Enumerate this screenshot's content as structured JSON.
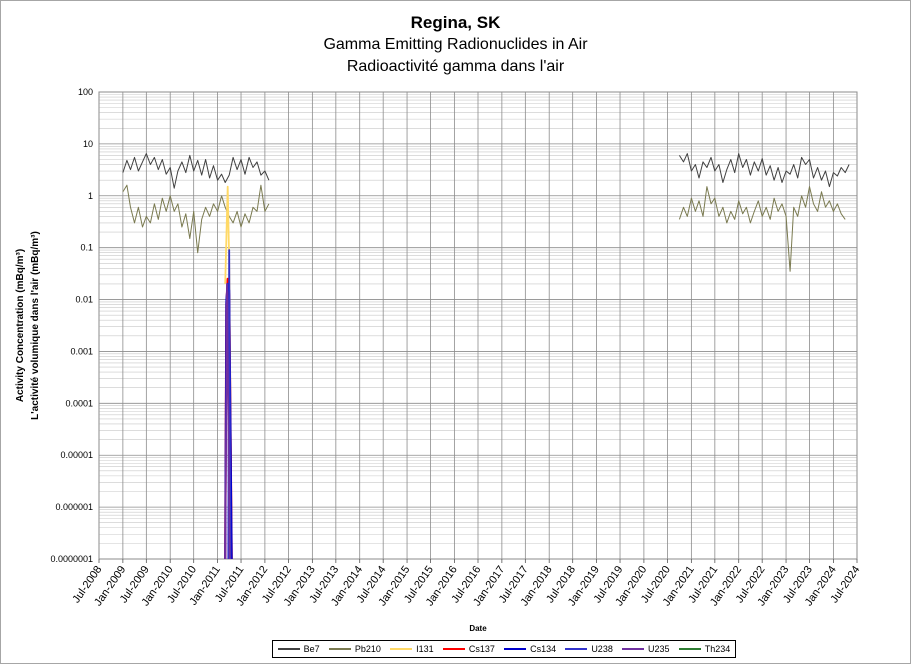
{
  "chart_data": {
    "type": "line",
    "title": "Regina, SK",
    "subtitle": "Gamma Emitting Radionuclides in Air",
    "subtitle_fr": "Radioactivité gamma dans l'air",
    "xlabel": "Date",
    "ylabel": "Activity Concentration  (mBq/m³)",
    "ylabel_fr": "L'activité volumique dans l'air (mBq/m³)",
    "y_scale": "log",
    "ylim": [
      1e-07,
      100
    ],
    "y_ticks": [
      "100",
      "10",
      "1",
      "0.1",
      "0.01",
      "0.001",
      "0.0001",
      "0.00001",
      "0.000001",
      "0.0000001"
    ],
    "xlim": [
      "2008-07-01",
      "2024-07-01"
    ],
    "x_ticks": [
      "Jul-2008",
      "Jan-2009",
      "Jul-2009",
      "Jan-2010",
      "Jul-2010",
      "Jan-2011",
      "Jul-2011",
      "Jan-2012",
      "Jul-2012",
      "Jan-2013",
      "Jul-2013",
      "Jan-2014",
      "Jul-2014",
      "Jan-2015",
      "Jul-2015",
      "Jan-2016",
      "Jul-2016",
      "Jan-2017",
      "Jul-2017",
      "Jan-2018",
      "Jul-2018",
      "Jan-2019",
      "Jul-2019",
      "Jan-2020",
      "Jul-2020",
      "Jan-2021",
      "Jul-2021",
      "Jan-2022",
      "Jul-2022",
      "Jan-2023",
      "Jul-2023",
      "Jan-2024",
      "Jul-2024"
    ],
    "grid": true,
    "legend_position": "bottom",
    "series": [
      {
        "name": "Be7",
        "color": "#404040",
        "segments": [
          [
            [
              "2009-01-01",
              2.8
            ],
            [
              "2009-02-01",
              4.8
            ],
            [
              "2009-03-01",
              3.2
            ],
            [
              "2009-04-01",
              5.5
            ],
            [
              "2009-05-01",
              3.0
            ],
            [
              "2009-06-01",
              4.5
            ],
            [
              "2009-07-01",
              6.5
            ],
            [
              "2009-08-01",
              4.0
            ],
            [
              "2009-09-01",
              5.5
            ],
            [
              "2009-10-01",
              3.2
            ],
            [
              "2009-11-01",
              5.0
            ],
            [
              "2009-12-01",
              2.6
            ],
            [
              "2010-01-01",
              3.5
            ],
            [
              "2010-02-01",
              1.4
            ],
            [
              "2010-03-01",
              3.0
            ],
            [
              "2010-04-01",
              4.5
            ],
            [
              "2010-05-01",
              2.8
            ],
            [
              "2010-06-01",
              6.0
            ],
            [
              "2010-07-01",
              3.0
            ],
            [
              "2010-08-01",
              4.8
            ],
            [
              "2010-09-01",
              2.5
            ],
            [
              "2010-10-01",
              5.0
            ],
            [
              "2010-11-01",
              2.2
            ],
            [
              "2010-12-01",
              3.8
            ],
            [
              "2011-01-01",
              2.0
            ],
            [
              "2011-02-01",
              2.6
            ],
            [
              "2011-03-01",
              1.8
            ],
            [
              "2011-04-01",
              2.5
            ],
            [
              "2011-05-01",
              5.5
            ],
            [
              "2011-06-01",
              3.2
            ],
            [
              "2011-07-01",
              5.0
            ],
            [
              "2011-08-01",
              2.6
            ],
            [
              "2011-09-01",
              5.5
            ],
            [
              "2011-10-01",
              3.5
            ],
            [
              "2011-11-01",
              4.5
            ],
            [
              "2011-12-01",
              2.5
            ],
            [
              "2012-01-01",
              3.0
            ],
            [
              "2012-02-01",
              2.0
            ]
          ],
          [
            [
              "2020-10-01",
              6.0
            ],
            [
              "2020-11-01",
              4.5
            ],
            [
              "2020-12-01",
              6.5
            ],
            [
              "2021-01-01",
              3.0
            ],
            [
              "2021-02-01",
              4.0
            ],
            [
              "2021-03-01",
              2.2
            ],
            [
              "2021-04-01",
              4.5
            ],
            [
              "2021-05-01",
              3.5
            ],
            [
              "2021-06-01",
              5.5
            ],
            [
              "2021-07-01",
              3.0
            ],
            [
              "2021-08-01",
              4.0
            ],
            [
              "2021-09-01",
              1.8
            ],
            [
              "2021-10-01",
              3.2
            ],
            [
              "2021-11-01",
              5.0
            ],
            [
              "2021-12-01",
              2.8
            ],
            [
              "2022-01-01",
              6.5
            ],
            [
              "2022-02-01",
              3.5
            ],
            [
              "2022-03-01",
              5.0
            ],
            [
              "2022-04-01",
              2.5
            ],
            [
              "2022-05-01",
              4.5
            ],
            [
              "2022-06-01",
              3.0
            ],
            [
              "2022-07-01",
              5.2
            ],
            [
              "2022-08-01",
              2.5
            ],
            [
              "2022-09-01",
              3.8
            ],
            [
              "2022-10-01",
              2.0
            ],
            [
              "2022-11-01",
              3.5
            ],
            [
              "2022-12-01",
              1.8
            ],
            [
              "2023-01-01",
              3.0
            ],
            [
              "2023-02-01",
              2.6
            ],
            [
              "2023-03-01",
              4.0
            ],
            [
              "2023-04-01",
              2.2
            ],
            [
              "2023-05-01",
              5.5
            ],
            [
              "2023-06-01",
              4.0
            ],
            [
              "2023-07-01",
              5.0
            ],
            [
              "2023-08-01",
              2.2
            ],
            [
              "2023-09-01",
              3.5
            ],
            [
              "2023-10-01",
              2.0
            ],
            [
              "2023-11-01",
              3.0
            ],
            [
              "2023-12-01",
              1.5
            ],
            [
              "2024-01-01",
              2.8
            ],
            [
              "2024-02-01",
              2.4
            ],
            [
              "2024-03-01",
              3.5
            ],
            [
              "2024-04-01",
              2.8
            ],
            [
              "2024-05-01",
              4.0
            ]
          ]
        ]
      },
      {
        "name": "Pb210",
        "color": "#7a7a50",
        "segments": [
          [
            [
              "2009-01-01",
              1.2
            ],
            [
              "2009-02-01",
              1.6
            ],
            [
              "2009-03-01",
              0.6
            ],
            [
              "2009-04-01",
              0.3
            ],
            [
              "2009-05-01",
              0.6
            ],
            [
              "2009-06-01",
              0.25
            ],
            [
              "2009-07-01",
              0.4
            ],
            [
              "2009-08-01",
              0.3
            ],
            [
              "2009-09-01",
              0.7
            ],
            [
              "2009-10-01",
              0.35
            ],
            [
              "2009-11-01",
              0.9
            ],
            [
              "2009-12-01",
              0.5
            ],
            [
              "2010-01-01",
              1.0
            ],
            [
              "2010-02-01",
              0.5
            ],
            [
              "2010-03-01",
              0.7
            ],
            [
              "2010-04-01",
              0.25
            ],
            [
              "2010-05-01",
              0.45
            ],
            [
              "2010-06-01",
              0.15
            ],
            [
              "2010-07-01",
              0.5
            ],
            [
              "2010-08-01",
              0.08
            ],
            [
              "2010-09-01",
              0.35
            ],
            [
              "2010-10-01",
              0.6
            ],
            [
              "2010-11-01",
              0.4
            ],
            [
              "2010-12-01",
              0.7
            ],
            [
              "2011-01-01",
              0.5
            ],
            [
              "2011-02-01",
              1.0
            ],
            [
              "2011-03-01",
              0.6
            ],
            [
              "2011-04-01",
              0.4
            ],
            [
              "2011-05-01",
              0.3
            ],
            [
              "2011-06-01",
              0.5
            ],
            [
              "2011-07-01",
              0.25
            ],
            [
              "2011-08-01",
              0.45
            ],
            [
              "2011-09-01",
              0.3
            ],
            [
              "2011-10-01",
              0.6
            ],
            [
              "2011-11-01",
              0.5
            ],
            [
              "2011-12-01",
              1.6
            ],
            [
              "2012-01-01",
              0.5
            ],
            [
              "2012-02-01",
              0.7
            ]
          ],
          [
            [
              "2020-10-01",
              0.35
            ],
            [
              "2020-11-01",
              0.6
            ],
            [
              "2020-12-01",
              0.4
            ],
            [
              "2021-01-01",
              0.9
            ],
            [
              "2021-02-01",
              0.5
            ],
            [
              "2021-03-01",
              0.8
            ],
            [
              "2021-04-01",
              0.4
            ],
            [
              "2021-05-01",
              1.5
            ],
            [
              "2021-06-01",
              0.7
            ],
            [
              "2021-07-01",
              0.9
            ],
            [
              "2021-08-01",
              0.4
            ],
            [
              "2021-09-01",
              0.6
            ],
            [
              "2021-10-01",
              0.3
            ],
            [
              "2021-11-01",
              0.5
            ],
            [
              "2021-12-01",
              0.35
            ],
            [
              "2022-01-01",
              0.8
            ],
            [
              "2022-02-01",
              0.45
            ],
            [
              "2022-03-01",
              0.6
            ],
            [
              "2022-04-01",
              0.3
            ],
            [
              "2022-05-01",
              0.5
            ],
            [
              "2022-06-01",
              0.8
            ],
            [
              "2022-07-01",
              0.4
            ],
            [
              "2022-08-01",
              0.6
            ],
            [
              "2022-09-01",
              0.35
            ],
            [
              "2022-10-01",
              0.9
            ],
            [
              "2022-11-01",
              0.5
            ],
            [
              "2022-12-01",
              0.7
            ],
            [
              "2023-01-01",
              0.4
            ],
            [
              "2023-02-01",
              0.035
            ],
            [
              "2023-03-01",
              0.6
            ],
            [
              "2023-04-01",
              0.4
            ],
            [
              "2023-05-01",
              1.0
            ],
            [
              "2023-06-01",
              0.6
            ],
            [
              "2023-07-01",
              1.5
            ],
            [
              "2023-08-01",
              0.7
            ],
            [
              "2023-09-01",
              0.5
            ],
            [
              "2023-10-01",
              1.2
            ],
            [
              "2023-11-01",
              0.6
            ],
            [
              "2023-12-01",
              0.8
            ],
            [
              "2024-01-01",
              0.5
            ],
            [
              "2024-02-01",
              0.7
            ],
            [
              "2024-03-01",
              0.45
            ],
            [
              "2024-04-01",
              0.35
            ]
          ]
        ]
      },
      {
        "name": "I131",
        "color": "#ffd966",
        "segments": [
          [
            [
              "2011-03-01",
              0.02
            ],
            [
              "2011-03-20",
              1.5
            ],
            [
              "2011-04-01",
              0.05
            ],
            [
              "2011-04-20",
              1e-07
            ]
          ]
        ]
      },
      {
        "name": "Cs137",
        "color": "#ff0000",
        "segments": [
          [
            [
              "2011-03-01",
              1e-07
            ],
            [
              "2011-03-10",
              0.008
            ],
            [
              "2011-03-20",
              0.025
            ],
            [
              "2011-04-01",
              0.012
            ],
            [
              "2011-04-20",
              1e-07
            ]
          ]
        ]
      },
      {
        "name": "Cs134",
        "color": "#0000cc",
        "segments": [
          [
            [
              "2011-03-01",
              1e-07
            ],
            [
              "2011-03-10",
              0.01
            ],
            [
              "2011-03-20",
              0.02
            ],
            [
              "2011-04-01",
              0.015
            ],
            [
              "2011-04-20",
              1e-07
            ]
          ]
        ]
      },
      {
        "name": "U238",
        "color": "#3333cc",
        "segments": [
          [
            [
              "2011-03-25",
              1e-07
            ],
            [
              "2011-04-01",
              0.09
            ],
            [
              "2011-04-10",
              1e-07
            ]
          ]
        ]
      },
      {
        "name": "U235",
        "color": "#7030a0",
        "segments": [
          [
            [
              "2011-03-01",
              1e-07
            ],
            [
              "2011-03-15",
              0.02
            ],
            [
              "2011-04-05",
              1e-07
            ]
          ]
        ]
      },
      {
        "name": "Th234",
        "color": "#2e7d32",
        "segments": []
      }
    ]
  }
}
